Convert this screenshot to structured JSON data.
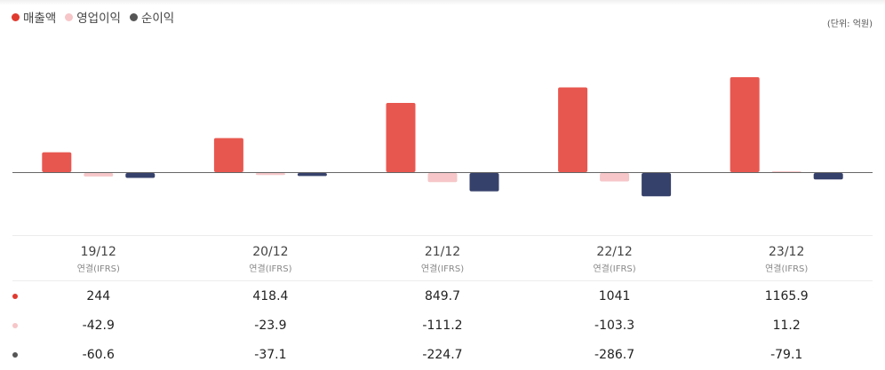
{
  "legend": [
    {
      "name": "매출액",
      "color": "#e03a2f"
    },
    {
      "name": "영업이익",
      "color": "#f6c6c8"
    },
    {
      "name": "순이익",
      "color": "#555555"
    }
  ],
  "unit_label": "(단위: 억원)",
  "chart_data": {
    "type": "bar",
    "categories": [
      "19/12",
      "20/12",
      "21/12",
      "22/12",
      "23/12"
    ],
    "category_sublabels": [
      "연결(IFRS)",
      "연결(IFRS)",
      "연결(IFRS)",
      "연결(IFRS)",
      "연결(IFRS)"
    ],
    "series": [
      {
        "name": "매출액",
        "color": "#e8574f",
        "values": [
          244,
          418.4,
          849.7,
          1041,
          1165.9
        ],
        "labels": [
          "244",
          "418.4",
          "849.7",
          "1041",
          "1165.9"
        ]
      },
      {
        "name": "영업이익",
        "color": "#f6c6c8",
        "values": [
          -42.9,
          -23.9,
          -111.2,
          -103.3,
          11.2
        ],
        "labels": [
          "-42.9",
          "-23.9",
          "-111.2",
          "-103.3",
          "11.2"
        ]
      },
      {
        "name": "순이익",
        "color": "#36416b",
        "values": [
          -60.6,
          -37.1,
          -224.7,
          -286.7,
          -79.1
        ],
        "labels": [
          "-60.6",
          "-37.1",
          "-224.7",
          "-286.7",
          "-79.1"
        ]
      }
    ],
    "legend_dot_colors": [
      "#e03a2f",
      "#f6c6c8",
      "#555555"
    ],
    "xlabel": "",
    "ylabel": "",
    "legend_position": "top-left"
  }
}
